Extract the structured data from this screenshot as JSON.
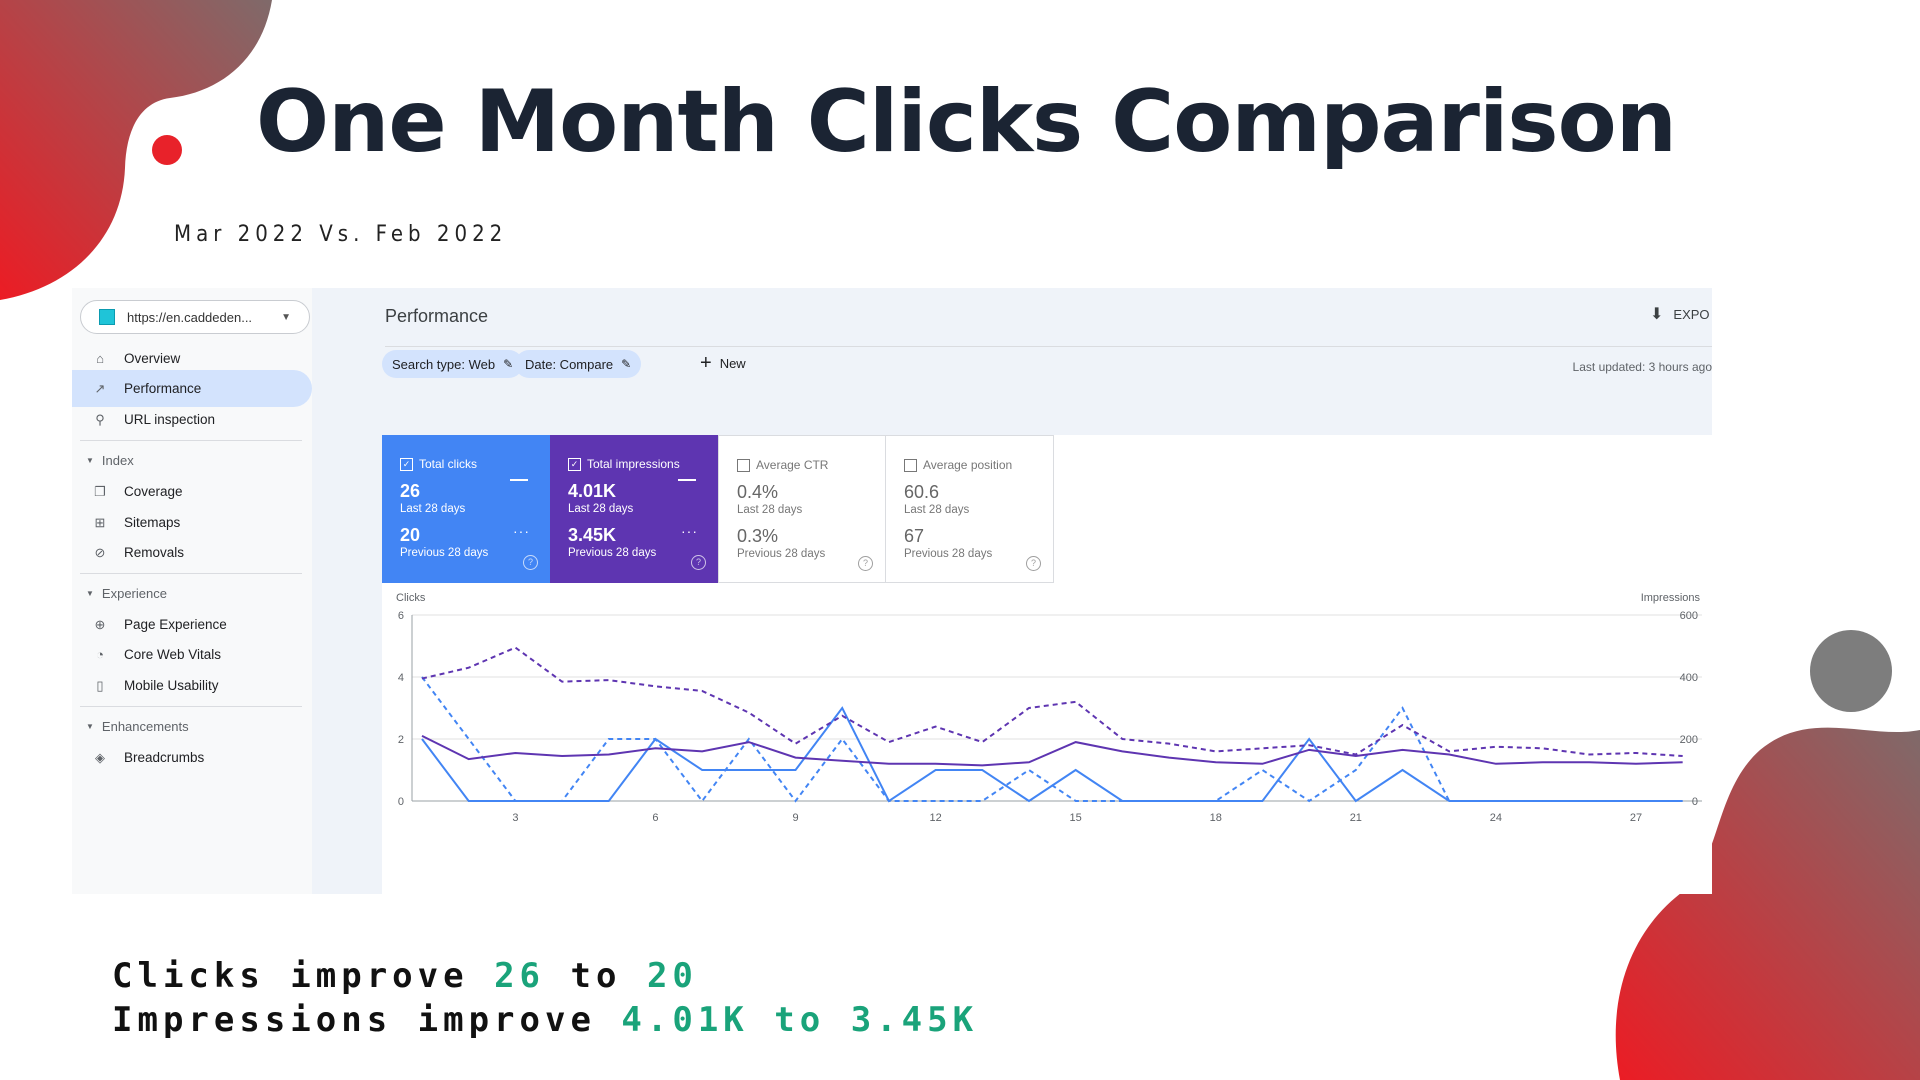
{
  "slide": {
    "title": "One Month Clicks Comparison",
    "subtitle": "Mar 2022 Vs. Feb 2022",
    "summary": {
      "clicks_prefix": "Clicks improve",
      "clicks_from": "26",
      "clicks_to_word": "to",
      "clicks_to": "20",
      "impressions_prefix": "Impressions improve",
      "impressions_from": "4.01K",
      "impressions_to_word": "to",
      "impressions_to": "3.45K"
    },
    "colors": {
      "accent_green": "#1aa37a",
      "title_color": "#1b2433",
      "blob_red": "#e8222a",
      "blob_grey": "#7d7d7d"
    }
  },
  "app": {
    "property": "https://en.caddeden...",
    "page_title": "Performance",
    "export_label": "EXPO",
    "filters": {
      "search_type": "Search type: Web",
      "date": "Date: Compare",
      "new_label": "New"
    },
    "last_updated": "Last updated: 3 hours ago",
    "sidebar": {
      "overview": "Overview",
      "performance": "Performance",
      "url_inspection": "URL inspection",
      "index_section": "Index",
      "coverage": "Coverage",
      "sitemaps": "Sitemaps",
      "removals": "Removals",
      "experience_section": "Experience",
      "page_experience": "Page Experience",
      "core_web_vitals": "Core Web Vitals",
      "mobile_usability": "Mobile Usability",
      "enhancements_section": "Enhancements",
      "breadcrumbs": "Breadcrumbs"
    },
    "metrics": {
      "clicks": {
        "label": "Total clicks",
        "current": "26",
        "current_period": "Last 28 days",
        "previous": "20",
        "previous_period": "Previous 28 days",
        "color": "#4285f4"
      },
      "impressions": {
        "label": "Total impressions",
        "current": "4.01K",
        "current_period": "Last 28 days",
        "previous": "3.45K",
        "previous_period": "Previous 28 days",
        "color": "#5e35b1"
      },
      "ctr": {
        "label": "Average CTR",
        "current": "0.4%",
        "current_period": "Last 28 days",
        "previous": "0.3%",
        "previous_period": "Previous 28 days"
      },
      "position": {
        "label": "Average position",
        "current": "60.6",
        "current_period": "Last 28 days",
        "previous": "67",
        "previous_period": "Previous 28 days"
      }
    }
  },
  "chart_data": {
    "type": "line",
    "ylabel": "Clicks",
    "y2label": "Impressions",
    "ylim": [
      0,
      6
    ],
    "y2lim": [
      0,
      600
    ],
    "yticks": [
      0,
      2,
      4,
      6
    ],
    "y2ticks": [
      0,
      200,
      400,
      600
    ],
    "xticks": [
      3,
      6,
      9,
      12,
      15,
      18,
      21,
      24,
      27
    ],
    "xlim": [
      1,
      28
    ],
    "x": [
      1,
      2,
      3,
      4,
      5,
      6,
      7,
      8,
      9,
      10,
      11,
      12,
      13,
      14,
      15,
      16,
      17,
      18,
      19,
      20,
      21,
      22,
      23,
      24,
      25,
      26,
      27,
      28
    ],
    "series": [
      {
        "axis": "left",
        "color": "#4285f4",
        "dashed": false,
        "values": [
          2,
          0,
          0,
          0,
          0,
          2,
          1,
          1,
          1,
          3,
          0,
          1,
          1,
          0,
          1,
          0,
          0,
          0,
          0,
          2,
          0,
          1,
          0,
          0,
          0,
          0,
          0,
          0
        ]
      },
      {
        "axis": "left",
        "color": "#4285f4",
        "dashed": true,
        "values": [
          4,
          2,
          0,
          0,
          2,
          2,
          0,
          2,
          0,
          2,
          0,
          0,
          0,
          1,
          0,
          0,
          0,
          0,
          1,
          0,
          1,
          3,
          0,
          0,
          0,
          0,
          0,
          0
        ]
      },
      {
        "axis": "right",
        "color": "#5e35b1",
        "dashed": false,
        "values": [
          210,
          135,
          155,
          145,
          150,
          170,
          160,
          190,
          140,
          130,
          120,
          120,
          115,
          125,
          190,
          160,
          140,
          125,
          120,
          165,
          145,
          165,
          150,
          120,
          125,
          125,
          120,
          125
        ]
      },
      {
        "axis": "right",
        "color": "#5e35b1",
        "dashed": true,
        "values": [
          395,
          430,
          495,
          385,
          390,
          370,
          355,
          285,
          185,
          275,
          190,
          240,
          190,
          300,
          320,
          200,
          185,
          160,
          170,
          180,
          150,
          245,
          160,
          175,
          170,
          150,
          155,
          145
        ]
      }
    ]
  }
}
